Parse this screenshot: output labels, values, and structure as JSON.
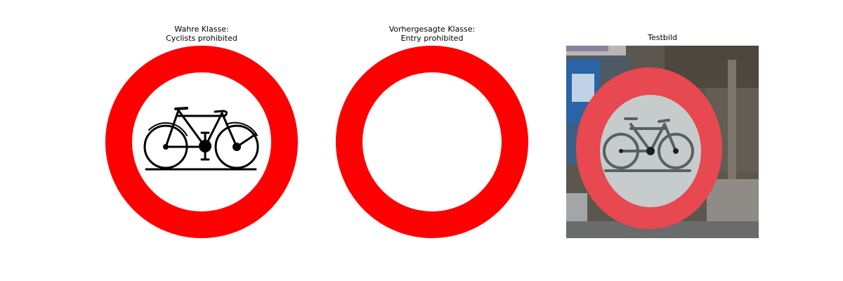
{
  "panels": [
    {
      "title_line1": "Wahre Klasse:",
      "title_line2": "Cyclists prohibited",
      "sign_color": "#ff0000"
    },
    {
      "title_line1": "Vorhergesagte Klasse:",
      "title_line2": "Entry prohibited",
      "sign_color": "#ff0000"
    },
    {
      "title_line1": "Testbild"
    }
  ]
}
